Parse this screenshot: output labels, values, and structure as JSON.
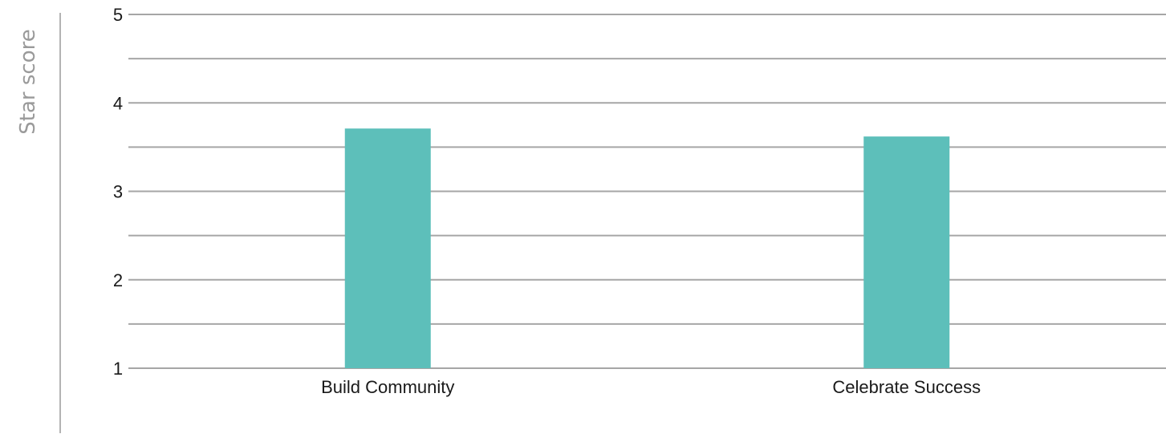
{
  "chart_data": {
    "type": "bar",
    "title": "",
    "xlabel": "",
    "ylabel": "Star score",
    "categories": [
      "Build Community",
      "Celebrate Success"
    ],
    "values": [
      3.71,
      3.62
    ],
    "ylim": [
      1,
      5
    ],
    "yticks": [
      "1",
      "2",
      "3",
      "4",
      "5"
    ],
    "grid": true,
    "legend": "none",
    "colors": {
      "bar": "#5dbfba",
      "grid": "#a6a6a6",
      "axis_rule": "#b3b3b3",
      "ylabel": "#9a9a9a",
      "text": "#1a1a1a"
    }
  }
}
